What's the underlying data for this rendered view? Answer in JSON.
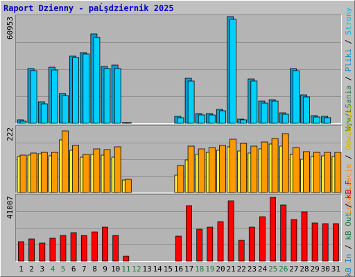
{
  "title": "Raport Dzienny -  paĹşdziernik 2025",
  "colors": {
    "background": "#c0c0c0",
    "plot_bg": "#b4b4b4",
    "title": "#0000c0",
    "axis_num": "#000000",
    "day_weekday": "#000000",
    "day_weekend": "#1e7a3c",
    "day_holiday": "#d40000",
    "hits": "#00d0ff",
    "files": "#00a0d8",
    "sites": "#ffee33",
    "visits": "#ff9900",
    "kbin": "#ff0000",
    "kbout": "#ff4040"
  },
  "day_label_colors": [
    "weekday",
    "weekday",
    "weekday",
    "weekend",
    "weekend",
    "weekday",
    "weekday",
    "weekday",
    "weekday",
    "weekday",
    "weekend",
    "weekend",
    "weekday",
    "weekday",
    "weekday",
    "weekday",
    "weekday",
    "weekend",
    "weekend",
    "weekday",
    "weekday",
    "weekday",
    "weekday",
    "weekday",
    "weekend",
    "weekend",
    "weekday",
    "weekday",
    "weekday",
    "weekday",
    "weekday"
  ],
  "right_legend": {
    "top": [
      {
        "text": "Wyw/ŁSania",
        "color": "#1e7a3c"
      },
      {
        "text": " / ",
        "color": "#000000"
      },
      {
        "text": "Pliki",
        "color": "#0088cc"
      },
      {
        "text": " / ",
        "color": "#000000"
      },
      {
        "text": "Strony",
        "color": "#00b8e0"
      }
    ],
    "middle": [
      {
        "text": "Lokalizacje",
        "color": "#ff8800"
      },
      {
        "text": " / ",
        "color": "#000000"
      },
      {
        "text": "Odwiedziny",
        "color": "#d4b400"
      }
    ],
    "bottom": [
      {
        "text": "kB In",
        "color": "#0088cc"
      },
      {
        "text": " / ",
        "color": "#000000"
      },
      {
        "text": "kB Out",
        "color": "#1e7a3c"
      },
      {
        "text": " / ",
        "color": "#000000"
      },
      {
        "text": "kB F",
        "color": "#d40000"
      }
    ]
  },
  "chart_data": [
    {
      "type": "bar",
      "panel": "top",
      "ymax_label": "60953",
      "ylim": [
        0,
        60953
      ],
      "categories": [
        "1",
        "2",
        "3",
        "4",
        "5",
        "6",
        "7",
        "8",
        "9",
        "10",
        "11",
        "12",
        "13",
        "14",
        "15",
        "16",
        "17",
        "18",
        "19",
        "20",
        "21",
        "22",
        "23",
        "24",
        "25",
        "26",
        "27",
        "28",
        "29",
        "30",
        "31"
      ],
      "series": [
        {
          "name": "Pliki",
          "values": [
            2100,
            31000,
            12000,
            31500,
            16700,
            38000,
            40000,
            50500,
            32000,
            33000,
            500,
            null,
            null,
            null,
            null,
            4000,
            25500,
            5300,
            5500,
            7800,
            60000,
            2200,
            25000,
            12500,
            13300,
            6000,
            31000,
            16000,
            4200,
            4000,
            null
          ]
        },
        {
          "name": "Strony",
          "values": [
            1200,
            29500,
            11000,
            30000,
            15500,
            37000,
            39000,
            48500,
            31000,
            31000,
            300,
            null,
            null,
            null,
            null,
            3000,
            24000,
            4500,
            4800,
            7000,
            58500,
            1800,
            24000,
            11500,
            12500,
            5000,
            29500,
            15000,
            3500,
            3200,
            null
          ]
        }
      ]
    },
    {
      "type": "bar",
      "panel": "middle",
      "ymax_label": "222",
      "ylim": [
        0,
        222
      ],
      "categories": [
        "1",
        "2",
        "3",
        "4",
        "5",
        "6",
        "7",
        "8",
        "9",
        "10",
        "11",
        "12",
        "13",
        "14",
        "15",
        "16",
        "17",
        "18",
        "19",
        "20",
        "21",
        "22",
        "23",
        "24",
        "25",
        "26",
        "27",
        "28",
        "29",
        "30",
        "31"
      ],
      "series": [
        {
          "name": "Odwiedziny",
          "values": [
            120,
            125,
            130,
            122,
            175,
            142,
            118,
            127,
            125,
            118,
            42,
            null,
            null,
            null,
            null,
            58,
            108,
            128,
            135,
            142,
            152,
            138,
            132,
            145,
            162,
            155,
            128,
            112,
            120,
            122,
            120
          ]
        },
        {
          "name": "Lokalizacje",
          "values": [
            125,
            132,
            135,
            135,
            205,
            158,
            128,
            146,
            143,
            152,
            45,
            null,
            null,
            null,
            null,
            90,
            155,
            145,
            150,
            158,
            178,
            165,
            155,
            168,
            180,
            196,
            150,
            136,
            135,
            135,
            133
          ]
        }
      ]
    },
    {
      "type": "bar",
      "panel": "bottom",
      "ymax_label": "41007",
      "ylim": [
        0,
        41007
      ],
      "categories": [
        "1",
        "2",
        "3",
        "4",
        "5",
        "6",
        "7",
        "8",
        "9",
        "10",
        "11",
        "12",
        "13",
        "14",
        "15",
        "16",
        "17",
        "18",
        "19",
        "20",
        "21",
        "22",
        "23",
        "24",
        "25",
        "26",
        "27",
        "28",
        "29",
        "30",
        "31"
      ],
      "series": [
        {
          "name": "kB F",
          "values": [
            12000,
            13500,
            11000,
            14000,
            16000,
            17500,
            16000,
            18000,
            21000,
            16000,
            3000,
            null,
            null,
            null,
            null,
            15500,
            34000,
            19500,
            21000,
            24500,
            37000,
            13000,
            21000,
            27500,
            39500,
            34500,
            25500,
            30500,
            23500,
            23000,
            23000
          ]
        }
      ]
    }
  ]
}
